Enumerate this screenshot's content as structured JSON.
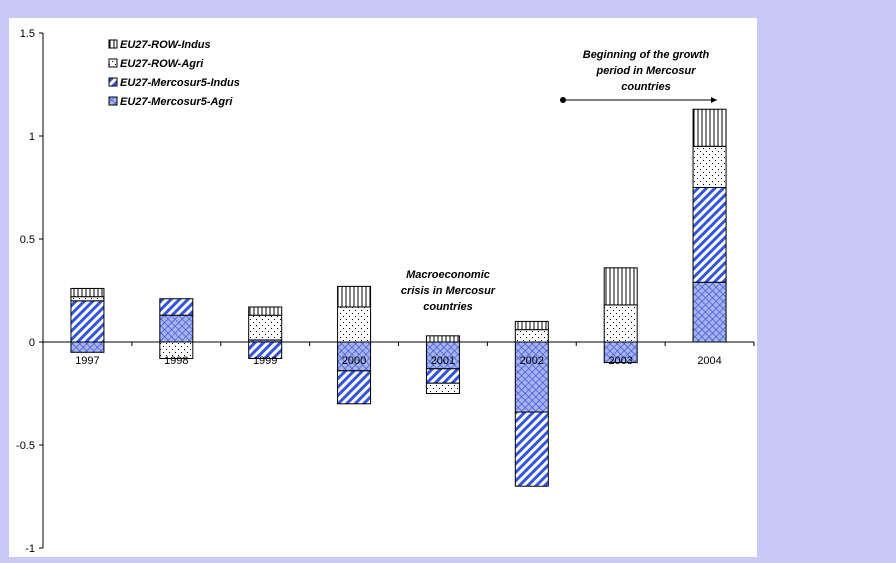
{
  "colors": {
    "page_background": "#c9c9f7",
    "plot_background": "#ffffff",
    "series_blue": "#3355dd",
    "pattern_ink": "#000000"
  },
  "chart_data": {
    "type": "bar",
    "stacked": true,
    "categories": [
      "1997",
      "1998",
      "1999",
      "2000",
      "2001",
      "2002",
      "2003",
      "2004"
    ],
    "series": [
      {
        "name": "EU27-ROW-Indus",
        "pattern": "vertical-lines",
        "values": [
          0.04,
          0.0,
          0.04,
          0.1,
          0.03,
          0.04,
          0.18,
          0.18
        ]
      },
      {
        "name": "EU27-ROW-Agri",
        "pattern": "dots",
        "values": [
          0.02,
          -0.08,
          0.12,
          0.17,
          -0.05,
          0.06,
          0.18,
          0.2
        ]
      },
      {
        "name": "EU27-Mercosur5-Indus",
        "pattern": "diagonal-blue",
        "values": [
          0.2,
          0.08,
          -0.08,
          -0.16,
          -0.07,
          -0.36,
          0.0,
          0.46
        ]
      },
      {
        "name": "EU27-Mercosur5-Agri",
        "pattern": "crosshatch-blue",
        "values": [
          -0.05,
          0.13,
          0.01,
          -0.14,
          -0.13,
          -0.34,
          -0.1,
          0.29
        ]
      }
    ],
    "ylim": [
      -1,
      1.5
    ],
    "yticks": [
      -1,
      -0.5,
      0,
      0.5,
      1,
      1.5
    ],
    "ytick_labels": [
      "-1",
      "-0.5",
      "0",
      "0.5",
      "1",
      "1.5"
    ],
    "grid": false,
    "legend": "top-left",
    "annotations": {
      "crisis": [
        "Macroeconomic",
        "crisis in Mercosur",
        "countries"
      ],
      "growth": [
        "Beginning of the growth",
        "period in Mercosur",
        "countries"
      ]
    }
  }
}
